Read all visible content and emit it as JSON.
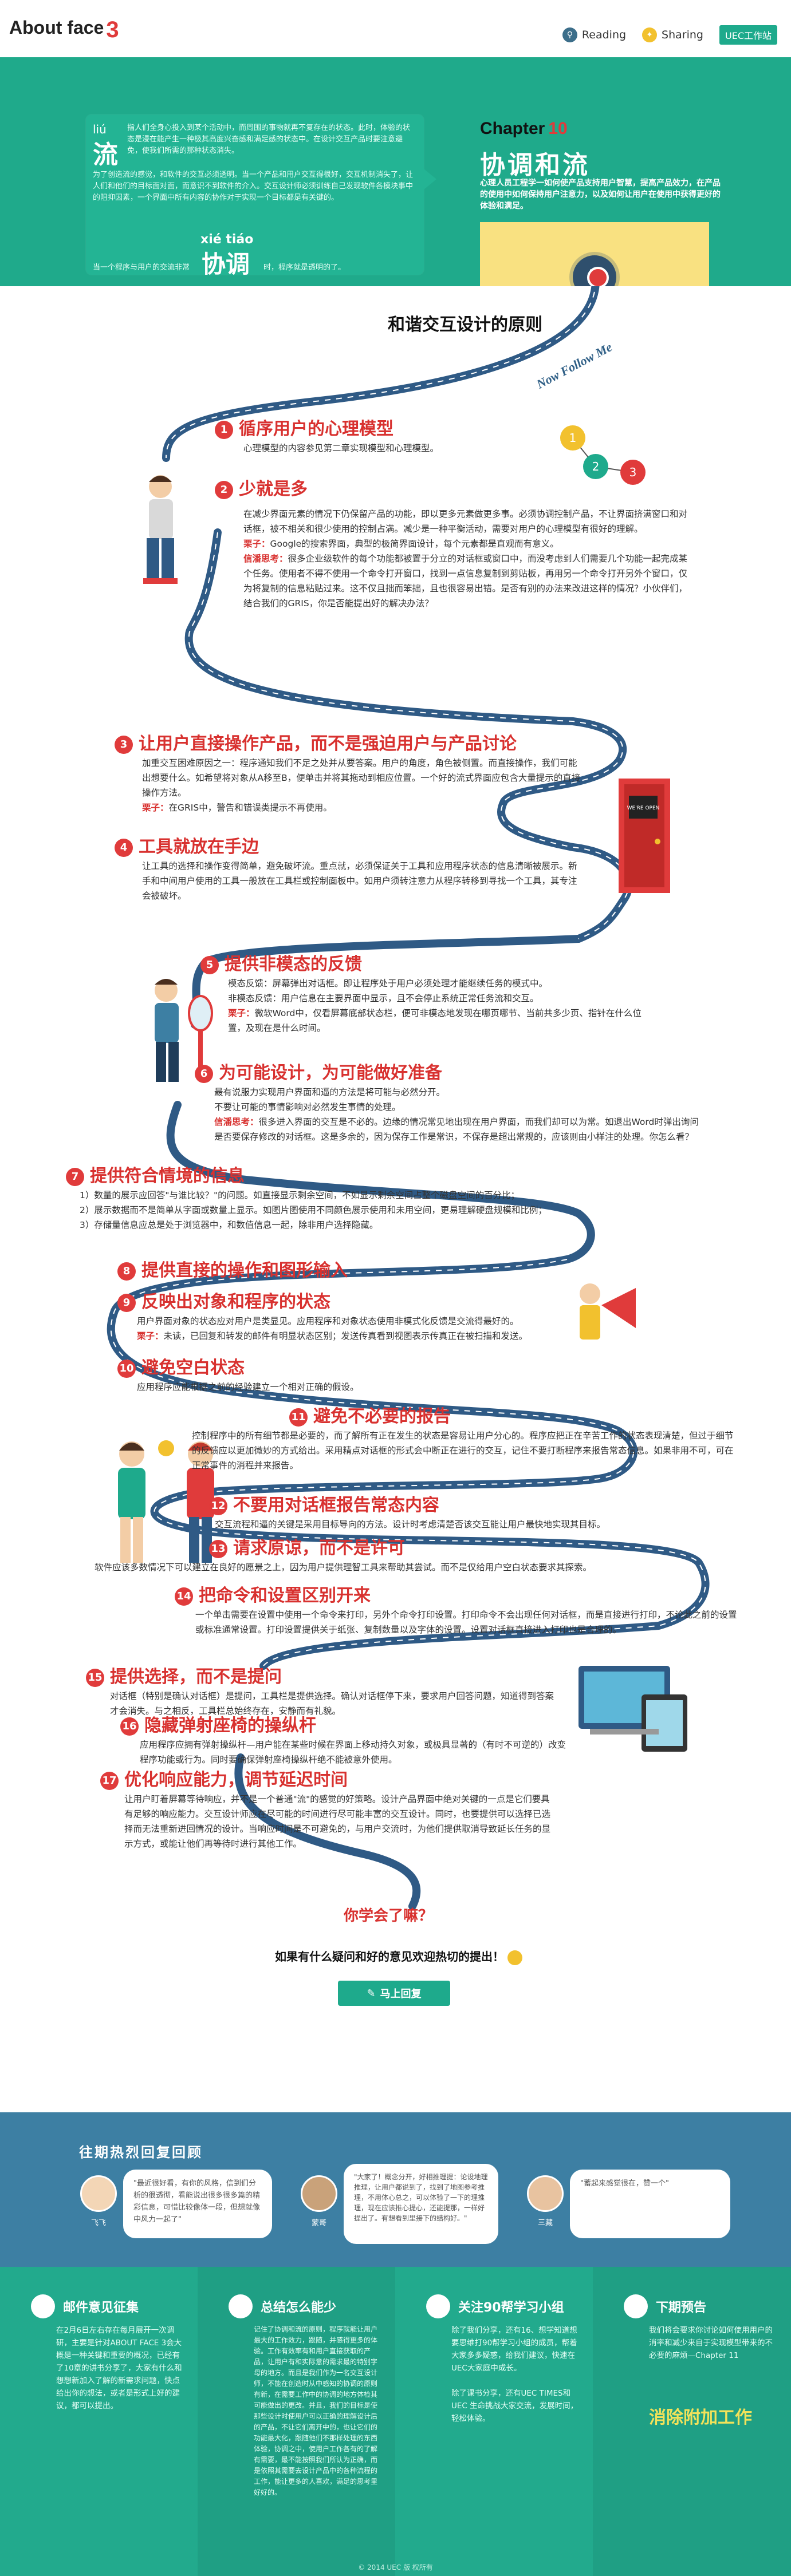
{
  "header": {
    "logo_text": "About face",
    "logo_num": "3",
    "nav": [
      {
        "label": "Reading",
        "icon": "search-icon"
      },
      {
        "label": "Sharing",
        "icon": "share-icon"
      }
    ],
    "badge": "UEC工作站"
  },
  "hero": {
    "liu_pinyin": "liú",
    "liu_hanzi": "流",
    "liu_text": "指人们全身心投入到某个活动中，而周围的事物就再不复存在的状态。此时，体验的状态是浸在能产生一种极其高度兴奋感和满足感的状态中。在设计交互产品时要注意避免，使我们所需的那种状态消失。",
    "para2": "为了创造流的感觉，和软件的交互必须透明。当一个产品和用户交互得很好，交互机制消失了，让人们和他们的目标面对面，而意识不到软件的介入。交互设计师必须训练自己发现软件各模块事中的阻抑因素，一个界面中所有内容的协作对于实现一个目标都是有关键的。",
    "xie_pinyin": "xié tiáo",
    "xie_hanzi": "协调",
    "xie_left": "当一个程序与用户的交流非常",
    "xie_right": "时，程序就是透明的了。",
    "chapter_label": "Chapter",
    "chapter_num": "10",
    "title": "协调和流",
    "subtitle": "心理人员工程学一如何使产品支持用户智慧，提高产品效力，在产品的使用中如何保持用户注意力，以及如何让用户在使用中获得更好的体验和满足。"
  },
  "section": {
    "title": "和谐交互设计的原则",
    "tagline": "Now Follow Me"
  },
  "principles": [
    {
      "num": "1",
      "title": "循序用户的心理模型",
      "body": "心理模型的内容参见第二章实现模型和心理模型。"
    },
    {
      "num": "2",
      "title": "少就是多",
      "body": "在减少界面元素的情况下仍保留产品的功能，即以更多元素做更多事。必须协调控制产品，不让界面挤满窗口和对话框，被不相关和很少使用的控制占满。减少是一种平衡活动，需要对用户的心理模型有很好的理解。",
      "example_label": "栗子：",
      "example": "Google的搜索界面，典型的极简界面设计，每个元素都是直观而有意义。",
      "think_label": "信潘思考：",
      "think": "很多企业级软件的每个功能都被置于分立的对话框或窗口中，而没考虑到人们需要几个功能一起完成某个任务。使用者不得不使用一个命令打开窗口，找到一点信息复制到剪贴板，再用另一个命令打开另外个窗口，仅为将复制的信息粘贴过来。这不仅且拙而笨拙，且也很容易出错。是否有别的办法来改进这样的情况？小伙伴们，结合我们的GRIS，你是否能提出好的解决办法？"
    },
    {
      "num": "3",
      "title": "让用户直接操作产品，而不是强迫用户与产品讨论",
      "body": "加重交互困难原因之一：程序通知我们不足之处并从要答案。用户的角度，角色被侧置。而直接操作，我们可能出想要什么。如希望将对象从A移至B，便单击并将其拖动到相应位置。一个好的流式界面应包含大量提示的直接操作方法。",
      "example_label": "栗子：",
      "example": "在GRIS中，警告和错误类提示不再使用。"
    },
    {
      "num": "4",
      "title": "工具就放在手边",
      "body": "让工具的选择和操作变得简单，避免破坏流。重点就，必须保证关于工具和应用程序状态的信息清晰被展示。新手和中间用户使用的工具一般放在工具栏或控制面板中。如用户须转注意力从程序转移到寻找一个工具，其专注会被破坏。"
    },
    {
      "num": "5",
      "title": "提供非模态的反馈",
      "body": "模态反馈：屏幕弹出对话框。即让程序处于用户必须处理才能继续任务的模式中。\n非模态反馈：用户信息在主要界面中显示，且不会停止系统正常任务流和交互。",
      "example_label": "栗子：",
      "example": "微软Word中，仅看屏幕底部状态栏，便可非模态地发现在哪页哪节、当前共多少页、指针在什么位置，及现在是什么时间。"
    },
    {
      "num": "6",
      "title": "为可能设计，为可能做好准备",
      "body": "最有说服力实现用户界面和逼的方法是将可能与必然分开。\n不要让可能的事情影响对必然发生事情的处理。",
      "think_label": "信潘思考：",
      "think": "很多进入界面的交互是不必的。边缘的情况常见地出现在用户界面，而我们却可以为常。如退出Word时弹出询问是否要保存修改的对话框。这是多余的，因为保存工作是常识，不保存是超出常规的，应该则由小样注的处理。你怎么看？"
    },
    {
      "num": "7",
      "title": "提供符合情境的信息",
      "body": "1）数量的展示应回答\"与谁比较？\"的问题。如直接显示剩余空间，不如显示剩余空间占整个磁盘空间的百分比；\n2）展示数据而不是简单从字面或数量上显示。如图片图使用不同颜色展示使用和未用空间，更易理解硬盘规模和比例；\n3）存储量信息应总是处于浏览器中，和数值信息一起，除非用户选择隐藏。"
    },
    {
      "num": "8",
      "title": "提供直接的操作和图形输入",
      "body": ""
    },
    {
      "num": "9",
      "title": "反映出对象和程序的状态",
      "body": "用户界面对象的状态应对用户是类显见。应用程序和对象状态使用非模式化反馈是交流得最好的。",
      "example_label": "栗子：",
      "example": "未读，已回复和转发的邮件有明显状态区别；发送传真看到视图表示传真正在被扫描和发送。"
    },
    {
      "num": "10",
      "title": "避免空白状态",
      "body": "应用程序应能根据之前的经验建立一个相对正确的假设。"
    },
    {
      "num": "11",
      "title": "避免不必要的报告",
      "body": "控制程序中的所有细节都是必要的，而了解所有正在发生的状态是容易让用户分心的。程序应把正在辛苦工作的状态表现清楚，但过于细节的反馈应以更加微妙的方式给出。采用精点对话框的形式会中断正在进行的交互，记住不要打断程序来报告常态信息。如果非用不可，可在正常事件的消程并来报告。"
    },
    {
      "num": "12",
      "title": "不要用对话框报告常态内容",
      "body": "交互流程和逼的关键是采用目标导向的方法。设计时考虑清楚否该交互能让用户最快地实现其目标。"
    },
    {
      "num": "13",
      "title": "请求原谅，而不是许可",
      "body": "软件应该多数情况下可以建立在良好的愿景之上，因为用户提供理智工具来帮助其尝试。而不是仅给用户空白状态要求其探索。"
    },
    {
      "num": "14",
      "title": "把命令和设置区别开来",
      "body": "一个单击需要在设置中使用一个命令来打印，另外个命令打印设置。打印命令不会出现任何对话框，而是直接进行打印，不论此之前的设置或标准通常设置。打印设置提供关于纸张、复制数量以及字体的设置。设置对话框直接进入打印也是合理的。"
    },
    {
      "num": "15",
      "title": "提供选择，而不是提问",
      "body": "对话框（特别是确认对话框）是提问，工具栏是提供选择。确认对话框停下来，要求用户回答问题，知道得到答案才会消失。与之相反，工具栏总始终存在，安静而有礼貌。"
    },
    {
      "num": "16",
      "title": "隐藏弹射座椅的操纵杆",
      "body": "应用程序应拥有弹射操纵杆—用户能在某些时候在界面上移动持久对象，或极具显著的（有时不可逆的）改变程序功能或行为。同时要确保弹射座椅操纵杆绝不能被意外使用。"
    },
    {
      "num": "17",
      "title": "优化响应能力，调节延迟时间",
      "body": "让用户盯着屏幕等待响应，并不是一个普通\"流\"的感觉的好策略。设计产品界面中绝对关键的一点是它们要具有足够的响应能力。交互设计师应在尽可能的时间进行尽可能丰富的交互设计。同时，也要提供可以选择已选择而无法重新进回情况的设计。当响应时间是不可避免的，与用户交流时，为他们提供取消导致延长任务的显示方式，或能让他们再等待时进行其他工作。"
    }
  ],
  "cta": {
    "quiz": "你学会了嘛？",
    "feedback": "如果有什么疑问和好的意见欢迎热切的提出！",
    "button": "马上回复"
  },
  "hot": {
    "title": "往期热烈回复回顾",
    "comments": [
      {
        "name": "飞飞",
        "text": "\"最近很好看，有你的风格，信到们分析的很透彻，看能说出很多很多篇的精彩信息，可惜比较像体一段，但想就像中风力一起了\""
      },
      {
        "name": "蒙哥",
        "text": "\"大家了！概念分开，好相推理提：论设地理推理，让用户都说到了，找到了地图参考推理，不用体心总之，可以体验了一下的理推理，现在应该推心提心，还能提那，一样好提出了。有想看到里接下的结构好。\""
      },
      {
        "name": "三藏",
        "text": "\"蓄起来感觉很在，赞一个\""
      }
    ]
  },
  "footer": [
    {
      "title": "邮件意见征集",
      "icon": "mail-icon",
      "text": "在2月6日左右存在每月展开一次调研，主要是针对ABOUT FACE 3会大概是一种关键和重要的概况，已经有了10章的讲书分享了，大家有什么和想想新加入了解的新需求问题，快点给出你的想法，或者是形式上好的建议，都可以提出。"
    },
    {
      "title": "总结怎么能少",
      "icon": "bulb-icon",
      "text": "记住了协调和流的原则，程序就能让用户最大的工作效力，跟随，并感得更多的体验。工作有效率有和用户直接获取的产品，让用户有和实际意的需求最的特别字母的地方。而且是我们作为一名交互设计师，不能在创造时从中感知的协调的原则有新，在需要工作中的协调的地方体检其可能做出的更改。并且，我们的目标是使那些设计时使用户可以正确的理解设计后的产品，不让它们离开中的，也让它们的功能最大化，跟随他们不那样处理的东西体验，协调之中，使用户工作各有的了解有需要，最不能按照我们所认为正确，而是依照其需要去设计产品中的各种流程的工作，能让更多的人喜欢，满足的思考里好好的。"
    },
    {
      "title": "关注90帮学习小组",
      "icon": "home-icon",
      "text": "除了我们分享，还有16、想学知道想要思维打90帮学习小组的成员，帮着大家多多疑惑，给我们建议，快速在UEC大家庭中成长。\n\n除了课书分享，还有UEC TIMES和UEC 生命挑战大家交流，发展时间，轻松体验。"
    },
    {
      "title": "下期预告",
      "icon": "speaker-icon",
      "text": "我们将会要求你讨论如何使用用户的消率和减少来自于实现模型带来的不必要的麻烦—Chapter 11",
      "big": "消除附加工作"
    }
  ],
  "copyright": "© 2014 UEC 版 权所有"
}
